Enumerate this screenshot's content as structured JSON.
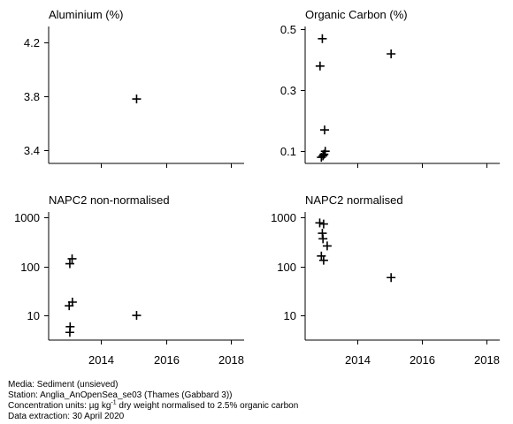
{
  "chart_data": [
    {
      "type": "scatter",
      "title": "Aluminium (%)",
      "xlim": [
        2012.4,
        2018.4
      ],
      "x_ticks": [
        2014,
        2016,
        2018
      ],
      "x_tick_labels": [
        "",
        "",
        ""
      ],
      "ylim": [
        3.3,
        4.32
      ],
      "y_scale": "linear",
      "y_ticks": [
        3.4,
        3.8,
        4.2
      ],
      "y_tick_labels": [
        "3.4",
        "3.8",
        "4.2"
      ],
      "points": [
        {
          "x": 2015.1,
          "y": 3.78
        }
      ]
    },
    {
      "type": "scatter",
      "title": "Organic Carbon (%)",
      "xlim": [
        2012.4,
        2018.4
      ],
      "x_ticks": [
        2014,
        2016,
        2018
      ],
      "x_tick_labels": [
        "",
        "",
        ""
      ],
      "ylim": [
        0.06,
        0.51
      ],
      "y_scale": "linear",
      "y_ticks": [
        0.1,
        0.3,
        0.5
      ],
      "y_tick_labels": [
        "0.1",
        "0.3",
        "0.5"
      ],
      "points": [
        {
          "x": 2012.93,
          "y": 0.47
        },
        {
          "x": 2012.86,
          "y": 0.38
        },
        {
          "x": 2015.05,
          "y": 0.42
        },
        {
          "x": 2013.0,
          "y": 0.17
        },
        {
          "x": 2013.02,
          "y": 0.1
        },
        {
          "x": 2012.98,
          "y": 0.09
        },
        {
          "x": 2012.95,
          "y": 0.085
        },
        {
          "x": 2012.9,
          "y": 0.08
        }
      ]
    },
    {
      "type": "scatter",
      "title": "NAPC2 non-normalised",
      "xlim": [
        2012.4,
        2018.4
      ],
      "x_ticks": [
        2014,
        2016,
        2018
      ],
      "x_tick_labels": [
        "2014",
        "2016",
        "2018"
      ],
      "ylim": [
        3.2,
        1300
      ],
      "y_scale": "log",
      "y_ticks": [
        10,
        100,
        1000
      ],
      "y_tick_labels": [
        "10",
        "100",
        "1000"
      ],
      "points": [
        {
          "x": 2013.12,
          "y": 145
        },
        {
          "x": 2013.05,
          "y": 115
        },
        {
          "x": 2013.13,
          "y": 19
        },
        {
          "x": 2013.03,
          "y": 16
        },
        {
          "x": 2013.06,
          "y": 6
        },
        {
          "x": 2013.05,
          "y": 4.6
        },
        {
          "x": 2015.1,
          "y": 10.2
        }
      ]
    },
    {
      "type": "scatter",
      "title": "NAPC2 normalised",
      "xlim": [
        2012.4,
        2018.4
      ],
      "x_ticks": [
        2014,
        2016,
        2018
      ],
      "x_tick_labels": [
        "2014",
        "2016",
        "2018"
      ],
      "ylim": [
        3.2,
        1300
      ],
      "y_scale": "log",
      "y_ticks": [
        10,
        100,
        1000
      ],
      "y_tick_labels": [
        "10",
        "100",
        "1000"
      ],
      "points": [
        {
          "x": 2012.85,
          "y": 780
        },
        {
          "x": 2012.97,
          "y": 740
        },
        {
          "x": 2012.93,
          "y": 480
        },
        {
          "x": 2012.95,
          "y": 370
        },
        {
          "x": 2013.08,
          "y": 265
        },
        {
          "x": 2012.9,
          "y": 165
        },
        {
          "x": 2012.97,
          "y": 135
        },
        {
          "x": 2015.05,
          "y": 60
        }
      ]
    }
  ],
  "footer": {
    "media": "Media: Sediment (unsieved)",
    "station": "Station: Anglia_AnOpenSea_se03 (Thames (Gabbard 3))",
    "units_prefix": "Concentration units:  µg kg",
    "units_sup": "-1",
    "units_suffix": " dry weight normalised to 2.5% organic carbon",
    "extraction": "Data extraction: 30 April 2020"
  }
}
